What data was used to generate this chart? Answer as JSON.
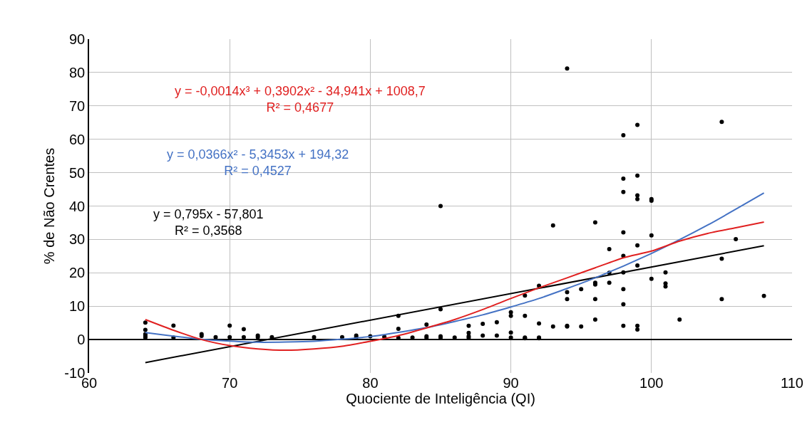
{
  "chart_data": {
    "type": "scatter",
    "xlabel": "Quociente de Inteligência (QI)",
    "ylabel": "% de Não Crentes",
    "xlim": [
      60,
      110
    ],
    "xticks": [
      60,
      70,
      80,
      90,
      100,
      110
    ],
    "ylim": [
      -10,
      90
    ],
    "yticks": [
      -10,
      0,
      10,
      20,
      30,
      40,
      50,
      60,
      70,
      80,
      90
    ],
    "grid": true,
    "marker": "circle",
    "series": [
      {
        "color": "#000000",
        "x": [
          64,
          64,
          64,
          64,
          64,
          66,
          66,
          68,
          68,
          69,
          70,
          70,
          71,
          71,
          72,
          72,
          73,
          76,
          78,
          79,
          79,
          80,
          81,
          82,
          82,
          82,
          83,
          84,
          84,
          84,
          85,
          85,
          85,
          85,
          86,
          87,
          87,
          87,
          87,
          88,
          88,
          89,
          89,
          90,
          90,
          90,
          90,
          91,
          91,
          91,
          91,
          92,
          92,
          92,
          92,
          93,
          93,
          94,
          94,
          94,
          94,
          94,
          95,
          95,
          96,
          96,
          96,
          96,
          96,
          97,
          97,
          97,
          98,
          98,
          98,
          98,
          98,
          98,
          98,
          98,
          98,
          99,
          99,
          99,
          99,
          99,
          99,
          99,
          99,
          100,
          100,
          100,
          100,
          101,
          101,
          101,
          102,
          105,
          105,
          105,
          106,
          108
        ],
        "values": [
          5.1,
          2.9,
          1.6,
          1.1,
          0.6,
          4.2,
          0.6,
          1.6,
          1.1,
          0.7,
          4.2,
          0.7,
          3.1,
          0.7,
          1.2,
          0.7,
          0.7,
          0.7,
          0.7,
          1.2,
          0.7,
          1,
          0.8,
          7.1,
          3.2,
          0.5,
          0.6,
          4.5,
          1,
          0.5,
          40,
          9.1,
          1,
          0.5,
          0.6,
          4.1,
          2,
          1,
          0.5,
          4.7,
          1.2,
          5.2,
          1.2,
          8.2,
          7.1,
          2.1,
          0.6,
          13.2,
          7.1,
          0.6,
          0.4,
          16.1,
          4.8,
          0.6,
          0.4,
          34.2,
          3.9,
          81.2,
          14.2,
          12.1,
          3.9,
          4.1,
          15.1,
          3.9,
          35.1,
          17,
          12.1,
          6,
          16.5,
          27.1,
          20,
          17,
          61.2,
          48.2,
          44.2,
          32.1,
          25.1,
          20.1,
          15.1,
          10.6,
          4.1,
          64.3,
          49.1,
          43.2,
          42.1,
          28.2,
          22.2,
          3,
          4.1,
          42.1,
          41.6,
          31.2,
          18.2,
          20.1,
          16.8,
          15.9,
          6,
          65.2,
          24.2,
          12.1,
          30.1,
          13.1
        ]
      },
      {
        "type": "line",
        "marker": "none",
        "name": "y = 0,795x - 57,801\nR² = 0,3568",
        "color": "#000000",
        "x": [
          64,
          108
        ],
        "values": [
          -6.9,
          28.1
        ]
      },
      {
        "type": "line",
        "marker": "none",
        "name": "y = 0,0366x² - 5,3453x + 194,32\nR² = 0,4527",
        "color": "#4472c4",
        "x": [
          64,
          68,
          72,
          76,
          80,
          84,
          88,
          92,
          96,
          100,
          104,
          108
        ],
        "values": [
          2.1,
          0.1,
          -0.8,
          -0.5,
          0.9,
          3.6,
          7.4,
          12.3,
          18.5,
          25.8,
          34.3,
          43.9
        ]
      },
      {
        "type": "line",
        "marker": "none",
        "name": "y = -0,0014x³ + 0,3902x² - 34,941x + 1008,7\nR² = 0,4677",
        "color": "#e02020",
        "x": [
          64,
          66,
          68,
          70,
          72,
          74,
          76,
          78,
          80,
          82,
          84,
          86,
          88,
          90,
          92,
          94,
          96,
          98,
          100,
          102,
          104,
          106,
          108
        ],
        "values": [
          6,
          2.8,
          0,
          -1.8,
          -2.8,
          -3.2,
          -2.8,
          -2,
          -0.5,
          1.2,
          3.5,
          6,
          9,
          12.3,
          15.5,
          18.5,
          21.5,
          24.5,
          26.5,
          29.5,
          31.8,
          33.5,
          35.2
        ]
      }
    ]
  }
}
